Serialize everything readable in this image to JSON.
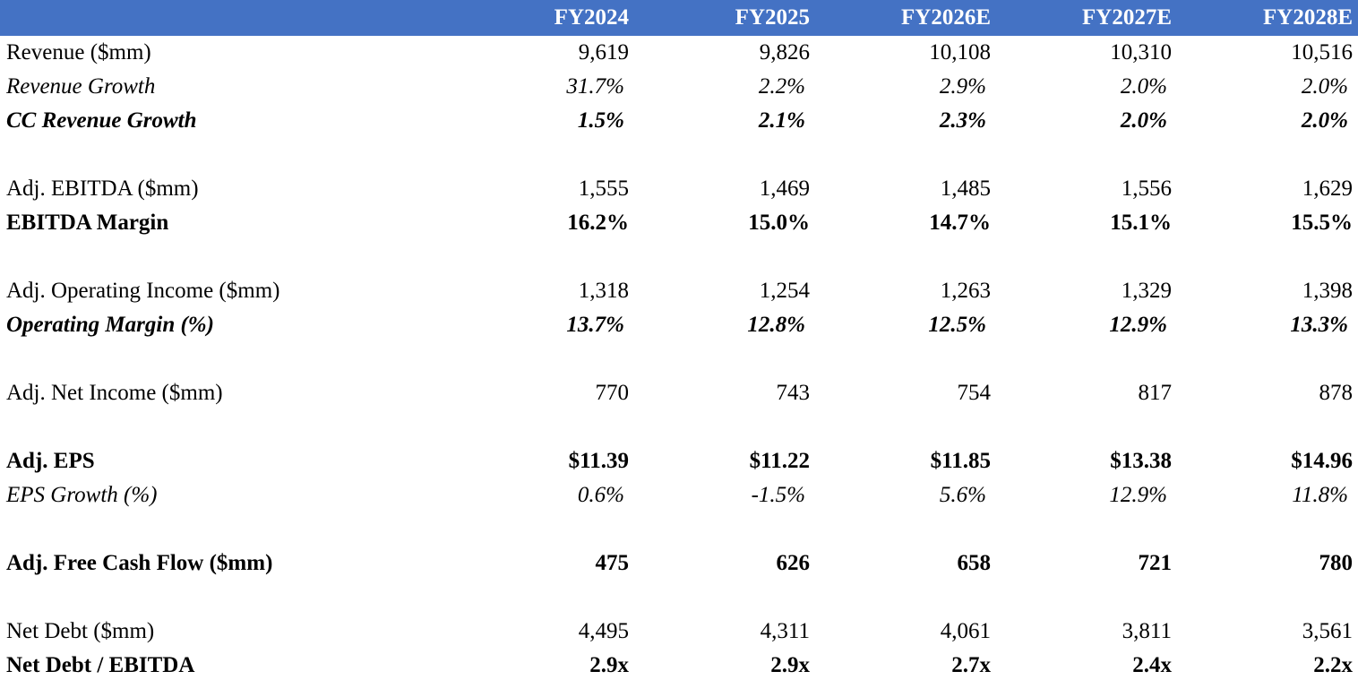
{
  "header": {
    "columns": [
      "FY2024",
      "FY2025",
      "FY2026E",
      "FY2027E",
      "FY2028E"
    ]
  },
  "rows": {
    "revenue": {
      "label": "Revenue ($mm)",
      "values": [
        "9,619",
        "9,826",
        "10,108",
        "10,310",
        "10,516"
      ]
    },
    "revenue_growth": {
      "label": "Revenue Growth",
      "values": [
        "31.7%",
        "2.2%",
        "2.9%",
        "2.0%",
        "2.0%"
      ]
    },
    "cc_revenue_growth": {
      "label": "CC Revenue Growth",
      "values": [
        "1.5%",
        "2.1%",
        "2.3%",
        "2.0%",
        "2.0%"
      ]
    },
    "adj_ebitda": {
      "label": "Adj. EBITDA ($mm)",
      "values": [
        "1,555",
        "1,469",
        "1,485",
        "1,556",
        "1,629"
      ]
    },
    "ebitda_margin": {
      "label": "EBITDA Margin",
      "values": [
        "16.2%",
        "15.0%",
        "14.7%",
        "15.1%",
        "15.5%"
      ]
    },
    "adj_operating_income": {
      "label": "Adj. Operating Income ($mm)",
      "values": [
        "1,318",
        "1,254",
        "1,263",
        "1,329",
        "1,398"
      ]
    },
    "operating_margin": {
      "label": "Operating Margin (%)",
      "values": [
        "13.7%",
        "12.8%",
        "12.5%",
        "12.9%",
        "13.3%"
      ]
    },
    "adj_net_income": {
      "label": "Adj. Net Income ($mm)",
      "values": [
        "770",
        "743",
        "754",
        "817",
        "878"
      ]
    },
    "adj_eps": {
      "label": "Adj. EPS",
      "values": [
        "$11.39",
        "$11.22",
        "$11.85",
        "$13.38",
        "$14.96"
      ]
    },
    "eps_growth": {
      "label": "EPS Growth (%)",
      "values": [
        "0.6%",
        "-1.5%",
        "5.6%",
        "12.9%",
        "11.8%"
      ]
    },
    "adj_fcf": {
      "label": "Adj. Free Cash Flow ($mm)",
      "values": [
        "475",
        "626",
        "658",
        "721",
        "780"
      ]
    },
    "net_debt": {
      "label": "Net Debt ($mm)",
      "values": [
        "4,495",
        "4,311",
        "4,061",
        "3,811",
        "3,561"
      ]
    },
    "net_debt_ebitda": {
      "label": "Net Debt / EBITDA",
      "values": [
        "2.9x",
        "2.9x",
        "2.7x",
        "2.4x",
        "2.2x"
      ]
    }
  },
  "colors": {
    "header_bg": "#4472C4",
    "header_text": "#FFFFFF",
    "text": "#000000"
  }
}
